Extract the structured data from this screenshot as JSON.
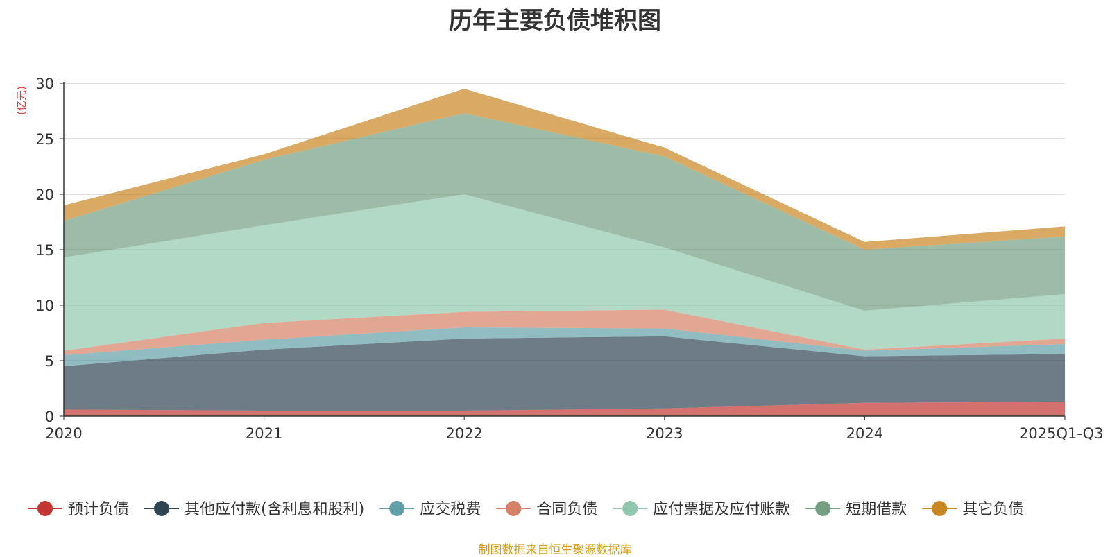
{
  "title": "历年主要负债堆积图",
  "unit": "(亿元)",
  "source": "制图数据来自恒生聚源数据库",
  "chart_data": {
    "type": "area",
    "stacked": true,
    "title": "历年主要负债堆积图",
    "ylabel": "(亿元)",
    "ylim": [
      0,
      30
    ],
    "yticks": [
      0,
      5,
      10,
      15,
      20,
      25,
      30
    ],
    "grid": true,
    "legend_position": "bottom",
    "categories": [
      "2020",
      "2021",
      "2022",
      "2023",
      "2024",
      "2025Q1-Q3"
    ],
    "series": [
      {
        "name": "预计负债",
        "color": "#c23531",
        "values": [
          0.6,
          0.5,
          0.5,
          0.7,
          1.2,
          1.3
        ]
      },
      {
        "name": "其他应付款(含利息和股利)",
        "color": "#2f4554",
        "values": [
          3.9,
          5.5,
          6.5,
          6.5,
          4.2,
          4.3
        ]
      },
      {
        "name": "应交税费",
        "color": "#61a0a8",
        "values": [
          1.0,
          0.9,
          1.0,
          0.7,
          0.5,
          0.9
        ]
      },
      {
        "name": "合同负债",
        "color": "#d48265",
        "values": [
          0.4,
          1.5,
          1.4,
          1.7,
          0.1,
          0.5
        ]
      },
      {
        "name": "应付票据及应付账款",
        "color": "#91c7ae",
        "values": [
          8.4,
          8.8,
          10.6,
          5.6,
          3.5,
          4.0
        ]
      },
      {
        "name": "短期借款",
        "color": "#749f83",
        "values": [
          3.3,
          5.9,
          7.3,
          8.2,
          5.5,
          5.2
        ]
      },
      {
        "name": "其它负债",
        "color": "#ca8622",
        "values": [
          1.4,
          0.5,
          2.2,
          0.8,
          0.7,
          0.9
        ]
      }
    ]
  }
}
